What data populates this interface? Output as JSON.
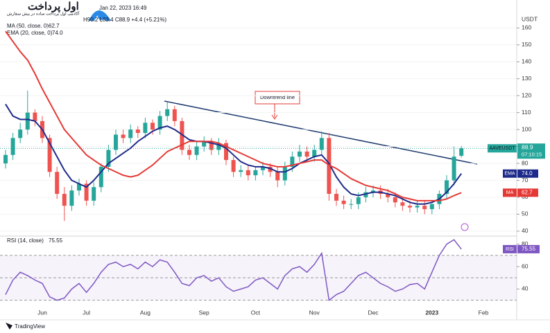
{
  "chart_data": [
    {
      "type": "candlestick",
      "date": "Jan 22, 2023 16:49",
      "ohlc_text": "H90.2 L83.4 C88.9 +4.4 (+5.21%)",
      "currency": "USDT",
      "annotation": "Downtrend line",
      "watermark": "اول پرداخت",
      "watermark_sub": "آکادمی اول پرداخت ساده در پیش سفارش",
      "brand": "TradingView",
      "categories": [
        null,
        null,
        null,
        null,
        null,
        "Jun",
        null,
        null,
        null,
        null,
        null,
        "Jul",
        null,
        null,
        null,
        null,
        null,
        null,
        null,
        "Aug",
        null,
        null,
        null,
        null,
        null,
        null,
        null,
        "Sep",
        null,
        null,
        null,
        null,
        null,
        null,
        "Oct",
        null,
        null,
        null,
        null,
        null,
        null,
        null,
        "Nov",
        null,
        null,
        null,
        null,
        null,
        null,
        null,
        "Dec",
        null,
        null,
        null,
        null,
        null,
        null,
        null,
        "2023",
        null,
        null,
        null,
        null,
        null,
        null,
        "Feb",
        null
      ],
      "ylim": [
        37.5,
        167.5
      ],
      "yticks": [
        40,
        50,
        60,
        70,
        80,
        90,
        100,
        110,
        120,
        130,
        140,
        150,
        160
      ],
      "up_color": "#26a69a",
      "down_color": "#ef5350",
      "series": [
        {
          "name": "AAVEUSDT",
          "last": "88.9",
          "countdown": "07:10:15",
          "color": "#26a69a",
          "open": [
            80,
            85,
            95,
            100,
            110,
            105,
            95,
            75,
            62,
            55,
            64,
            68,
            58,
            66,
            78,
            88,
            97,
            95,
            100,
            98,
            104,
            100,
            108,
            112,
            105,
            88,
            85,
            90,
            93,
            88,
            92,
            82,
            75,
            76,
            73,
            76,
            78,
            75,
            70,
            78,
            84,
            87,
            84,
            88,
            95,
            62,
            58,
            56,
            56,
            60,
            63,
            64,
            62,
            60,
            57,
            55,
            54,
            55,
            53,
            56,
            62,
            70,
            84.5,
            null,
            null,
            null,
            null
          ],
          "high": [
            88,
            98,
            104,
            123,
            112,
            108,
            97,
            78,
            66,
            67,
            71,
            70,
            69,
            80,
            91,
            100,
            100,
            103,
            102,
            107,
            106,
            111,
            116,
            114,
            107,
            91,
            93,
            96,
            95,
            95,
            94,
            84,
            79,
            79,
            78,
            81,
            80,
            78,
            81,
            87,
            91,
            90,
            91,
            99,
            98,
            65,
            61,
            59,
            63,
            66,
            67,
            67,
            65,
            63,
            60,
            58,
            58,
            58,
            57,
            64,
            73,
            90,
            90.2,
            null,
            null,
            null,
            null
          ],
          "low": [
            77,
            82,
            92,
            97,
            102,
            92,
            72,
            59,
            46,
            52,
            61,
            55,
            55,
            63,
            75,
            85,
            92,
            92,
            95,
            95,
            97,
            97,
            105,
            102,
            85,
            82,
            82,
            87,
            85,
            85,
            79,
            72,
            72,
            70,
            70,
            73,
            72,
            66,
            67,
            75,
            81,
            81,
            81,
            85,
            58,
            55,
            53,
            53,
            53,
            57,
            60,
            59,
            57,
            54,
            52,
            51,
            51,
            50,
            50,
            53,
            59,
            67,
            83.4,
            null,
            null,
            null,
            null
          ],
          "close": [
            85,
            95,
            100,
            110,
            105,
            95,
            75,
            62,
            55,
            64,
            68,
            58,
            66,
            78,
            88,
            97,
            95,
            100,
            98,
            104,
            100,
            108,
            112,
            105,
            88,
            85,
            90,
            93,
            88,
            92,
            82,
            75,
            76,
            73,
            76,
            78,
            75,
            70,
            78,
            84,
            87,
            84,
            88,
            95,
            62,
            58,
            56,
            56,
            60,
            63,
            64,
            62,
            60,
            57,
            55,
            54,
            55,
            53,
            56,
            62,
            70,
            84,
            88.9,
            null,
            null,
            null,
            null
          ]
        },
        {
          "name": "EMA",
          "legend": "EMA (20, close, 0)",
          "last": "74.0",
          "color": "#1e2a8a",
          "values": [
            115,
            108,
            106,
            106,
            105,
            100,
            92,
            84,
            76,
            70,
            68,
            66,
            70,
            75,
            80,
            83,
            86,
            89,
            93,
            96,
            99,
            101,
            102,
            100,
            97,
            94,
            93,
            93,
            92,
            91,
            89,
            85,
            81,
            79,
            78,
            78,
            77,
            75,
            75,
            77,
            80,
            82,
            84,
            85,
            80,
            72,
            66,
            62,
            61,
            62,
            63,
            63,
            62,
            61,
            59,
            57,
            56,
            56,
            57,
            59,
            63,
            68,
            74.0,
            null,
            null,
            null,
            null
          ]
        },
        {
          "name": "MA",
          "legend": "MA (50, close, 0)",
          "last": "62.7",
          "color": "#e53935",
          "values": [
            158,
            152,
            146,
            141,
            133,
            124,
            116,
            108,
            100,
            95,
            90,
            85,
            82,
            79,
            77,
            75,
            73,
            72,
            73,
            76,
            79,
            83,
            87,
            89,
            91,
            93,
            93,
            93,
            93,
            92,
            90,
            88,
            86,
            84,
            82,
            80,
            79,
            78,
            78,
            79,
            80,
            81,
            82,
            82,
            79,
            77,
            74,
            71,
            69,
            67,
            66,
            65,
            64,
            62,
            60,
            59,
            58,
            58,
            58,
            58,
            59,
            61,
            62.7,
            null,
            null,
            null,
            null
          ]
        }
      ]
    },
    {
      "type": "line",
      "name": "RSI",
      "legend": "RSI (14, close)",
      "last": "75.55",
      "color": "#7e57c2",
      "ylim": [
        23,
        86
      ],
      "yticks": [
        40,
        60,
        80
      ],
      "levels": [
        30,
        50,
        70
      ],
      "values": [
        35,
        48,
        55,
        52,
        48,
        45,
        33,
        30,
        32,
        40,
        45,
        37,
        45,
        55,
        62,
        64,
        60,
        62,
        58,
        64,
        60,
        66,
        64,
        55,
        45,
        43,
        50,
        52,
        47,
        50,
        42,
        38,
        40,
        42,
        48,
        50,
        45,
        40,
        52,
        58,
        60,
        55,
        62,
        72,
        30,
        35,
        38,
        45,
        52,
        55,
        50,
        45,
        42,
        38,
        40,
        44,
        45,
        40,
        55,
        70,
        80,
        84,
        75.55,
        null,
        null,
        null,
        null
      ]
    }
  ]
}
